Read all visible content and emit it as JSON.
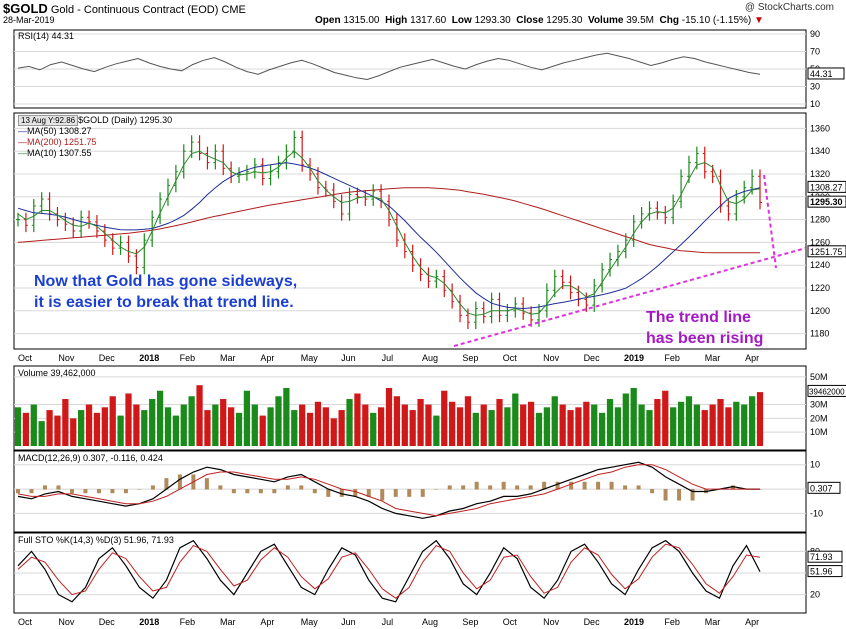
{
  "header": {
    "symbol": "$GOLD",
    "name": "Gold - Continuous Contract (EOD)",
    "exchange": "CME",
    "date": "28-Mar-2019",
    "open_label": "Open",
    "open": "1315.00",
    "high_label": "High",
    "high": "1317.60",
    "low_label": "Low",
    "low": "1293.30",
    "close_label": "Close",
    "close": "1295.30",
    "volume_label": "Volume",
    "volume": "39.5M",
    "chg_label": "Chg",
    "chg": "-15.10 (-1.15%)",
    "brand": "StockCharts.com"
  },
  "annotations": {
    "sideways_line1": "Now that Gold has gone sideways,",
    "sideways_line2": "it is easier to break that trend line.",
    "rising_line1": "The trend line",
    "rising_line2": "has been rising"
  },
  "colors": {
    "up": "#1a8a1a",
    "down": "#d01818",
    "ma50": "#1f2f99",
    "ma200": "#b01d1d",
    "ma10": "#2a8a2a",
    "trend": "#e031e0",
    "annotation_blue": "#1b3fd1",
    "annotation_purple": "#a419c4"
  },
  "chart_data": [
    {
      "type": "line",
      "panel": "rsi",
      "title": "RSI(14) 44.31",
      "y_ticks": [
        "90",
        "70",
        "50",
        "30",
        "10"
      ],
      "last_value": "44.31",
      "ylim": [
        10,
        90
      ],
      "values": [
        51,
        53,
        49,
        55,
        58,
        54,
        50,
        47,
        52,
        56,
        59,
        62,
        57,
        53,
        50,
        48,
        55,
        60,
        63,
        58,
        52,
        47,
        44,
        49,
        53,
        57,
        60,
        56,
        51,
        46,
        43,
        40,
        38,
        42,
        47,
        52,
        55,
        58,
        61,
        57,
        53,
        50,
        55,
        59,
        62,
        60,
        56,
        52,
        49,
        53,
        57,
        60,
        63,
        66,
        68,
        65,
        62,
        58,
        54,
        57,
        61,
        64,
        62,
        58,
        55,
        52,
        49,
        46,
        44
      ]
    },
    {
      "type": "line",
      "panel": "price",
      "title": "$GOLD (Daily) 1295.30",
      "tooltip": "13 Aug Y:92.86",
      "legend": [
        "MA(50) 1308.27",
        "MA(200) 1251.75",
        "MA(10) 1307.55"
      ],
      "y_ticks": [
        "1360",
        "1340",
        "1320",
        "1300",
        "1280",
        "1260",
        "1240",
        "1220",
        "1200",
        "1180"
      ],
      "ylim": [
        1170,
        1370
      ],
      "x_ticks": [
        "Oct",
        "Nov",
        "Dec",
        "2018",
        "Feb",
        "Mar",
        "Apr",
        "May",
        "Jun",
        "Jul",
        "Aug",
        "Sep",
        "Oct",
        "Nov",
        "Dec",
        "2019",
        "Feb",
        "Mar",
        "Apr"
      ],
      "price_labels": [
        "1308.27",
        "1295.30",
        "1251.75"
      ],
      "close": [
        1280,
        1275,
        1292,
        1298,
        1285,
        1280,
        1276,
        1270,
        1282,
        1278,
        1270,
        1262,
        1255,
        1260,
        1248,
        1238,
        1262,
        1282,
        1298,
        1310,
        1322,
        1340,
        1348,
        1338,
        1330,
        1340,
        1325,
        1318,
        1320,
        1322,
        1328,
        1316,
        1322,
        1330,
        1340,
        1352,
        1328,
        1320,
        1308,
        1306,
        1296,
        1285,
        1302,
        1300,
        1298,
        1305,
        1296,
        1280,
        1262,
        1252,
        1240,
        1232,
        1226,
        1230,
        1218,
        1208,
        1196,
        1190,
        1202,
        1195,
        1210,
        1196,
        1200,
        1206,
        1198,
        1192,
        1200,
        1218,
        1230,
        1225,
        1216,
        1210,
        1205,
        1222,
        1236,
        1245,
        1252,
        1262,
        1278,
        1285,
        1290,
        1286,
        1282,
        1296,
        1318,
        1330,
        1338,
        1322,
        1318,
        1292,
        1285,
        1300,
        1308,
        1318,
        1295
      ],
      "ma50": [
        1290,
        1286,
        1285,
        1283,
        1279,
        1276,
        1273,
        1271,
        1271,
        1272,
        1276,
        1282,
        1292,
        1305,
        1315,
        1322,
        1326,
        1328,
        1330,
        1328,
        1324,
        1318,
        1312,
        1306,
        1300,
        1292,
        1280,
        1266,
        1254,
        1240,
        1226,
        1214,
        1206,
        1203,
        1202,
        1203,
        1206,
        1208,
        1211,
        1213,
        1216,
        1220,
        1228,
        1238,
        1250,
        1262,
        1275,
        1288,
        1300,
        1305,
        1308
      ],
      "ma200": [
        1260,
        1262,
        1264,
        1266,
        1268,
        1271,
        1276,
        1282,
        1287,
        1292,
        1296,
        1300,
        1304,
        1306,
        1308,
        1308,
        1306,
        1302,
        1297,
        1290,
        1282,
        1274,
        1266,
        1258,
        1253,
        1251,
        1251,
        1251
      ],
      "ma10": [
        1285,
        1280,
        1283,
        1288,
        1288,
        1284,
        1279,
        1275,
        1274,
        1277,
        1274,
        1268,
        1262,
        1256,
        1252,
        1250,
        1256,
        1270,
        1286,
        1300,
        1314,
        1328,
        1338,
        1340,
        1336,
        1333,
        1330,
        1322,
        1319,
        1320,
        1322,
        1321,
        1322,
        1326,
        1334,
        1340,
        1334,
        1325,
        1314,
        1306,
        1300,
        1295,
        1296,
        1299,
        1300,
        1300,
        1298,
        1288,
        1274,
        1260,
        1248,
        1238,
        1231,
        1229,
        1224,
        1216,
        1206,
        1198,
        1196,
        1197,
        1200,
        1200,
        1200,
        1202,
        1200,
        1197,
        1198,
        1206,
        1215,
        1222,
        1222,
        1218,
        1212,
        1215,
        1225,
        1236,
        1246,
        1256,
        1268,
        1278,
        1285,
        1287,
        1286,
        1290,
        1302,
        1316,
        1328,
        1330,
        1326,
        1310,
        1296,
        1294,
        1298,
        1306,
        1307
      ]
    },
    {
      "type": "bar",
      "panel": "volume",
      "title": "Volume 39,462,000",
      "y_ticks": [
        "50M",
        "30M",
        "20M",
        "10M"
      ],
      "last_value": "39462000",
      "ylim": [
        0,
        55
      ],
      "values": [
        28,
        24,
        30,
        18,
        26,
        22,
        34,
        20,
        26,
        30,
        24,
        28,
        36,
        22,
        38,
        30,
        26,
        34,
        40,
        28,
        22,
        30,
        36,
        44,
        26,
        30,
        34,
        28,
        24,
        40,
        30,
        22,
        28,
        36,
        42,
        26,
        30,
        24,
        32,
        28,
        20,
        26,
        34,
        38,
        30,
        24,
        28,
        42,
        36,
        30,
        26,
        34,
        30,
        22,
        40,
        32,
        28,
        36,
        24,
        30,
        26,
        34,
        28,
        38,
        30,
        32,
        24,
        28,
        36,
        30,
        26,
        28,
        32,
        30,
        24,
        34,
        28,
        38,
        42,
        30,
        26,
        34,
        40,
        28,
        32,
        36,
        30,
        26,
        30,
        34,
        28,
        32,
        30,
        36,
        39
      ]
    },
    {
      "type": "line",
      "panel": "macd",
      "title": "MACD(12,26,9) 0.307, -0.116, 0.424",
      "y_ticks": [
        "10",
        "0",
        "-10"
      ],
      "last_value": "0.307",
      "ylim": [
        -16,
        14
      ],
      "macd": [
        -3,
        -4,
        -2,
        -1,
        -3,
        -4,
        -5,
        -6,
        -7,
        -6,
        -4,
        0,
        4,
        7,
        9,
        8,
        6,
        5,
        4,
        3,
        5,
        6,
        3,
        0,
        -2,
        -3,
        -5,
        -8,
        -10,
        -11,
        -12,
        -11,
        -9,
        -8,
        -6,
        -5,
        -3,
        -3,
        -2,
        0,
        2,
        4,
        6,
        8,
        9,
        10,
        11,
        9,
        5,
        2,
        -1,
        -1,
        0,
        1,
        0,
        0
      ],
      "signal": [
        -2,
        -3,
        -3,
        -2,
        -2,
        -3,
        -4,
        -5,
        -6,
        -6,
        -5,
        -3,
        0,
        3,
        6,
        7,
        7,
        6,
        5,
        4,
        4,
        5,
        4,
        2,
        0,
        -1,
        -3,
        -5,
        -8,
        -9,
        -10,
        -11,
        -10,
        -9,
        -8,
        -6,
        -5,
        -4,
        -3,
        -2,
        0,
        2,
        4,
        6,
        7,
        9,
        10,
        10,
        8,
        5,
        2,
        0,
        0,
        0,
        0,
        0
      ]
    },
    {
      "type": "line",
      "panel": "stochastic",
      "title": "Full STO %K(14,3) %D(3) 51.96, 71.93",
      "y_ticks": [
        "80",
        "50",
        "20"
      ],
      "last_values": [
        "71.93",
        "51.96"
      ],
      "ylim": [
        0,
        100
      ],
      "k": [
        60,
        80,
        55,
        20,
        10,
        30,
        70,
        85,
        60,
        30,
        15,
        40,
        85,
        95,
        70,
        40,
        20,
        50,
        80,
        90,
        60,
        30,
        20,
        55,
        85,
        75,
        40,
        15,
        10,
        45,
        80,
        95,
        70,
        35,
        20,
        50,
        85,
        70,
        30,
        15,
        40,
        80,
        90,
        65,
        35,
        20,
        55,
        85,
        95,
        80,
        50,
        25,
        15,
        60,
        88,
        52
      ],
      "d": [
        55,
        72,
        65,
        40,
        20,
        25,
        55,
        78,
        70,
        45,
        25,
        30,
        65,
        88,
        80,
        55,
        32,
        40,
        68,
        85,
        72,
        45,
        28,
        42,
        72,
        78,
        55,
        28,
        15,
        30,
        65,
        88,
        80,
        50,
        28,
        40,
        72,
        75,
        45,
        22,
        30,
        65,
        85,
        75,
        48,
        28,
        42,
        72,
        90,
        85,
        62,
        35,
        22,
        45,
        75,
        72
      ]
    }
  ]
}
